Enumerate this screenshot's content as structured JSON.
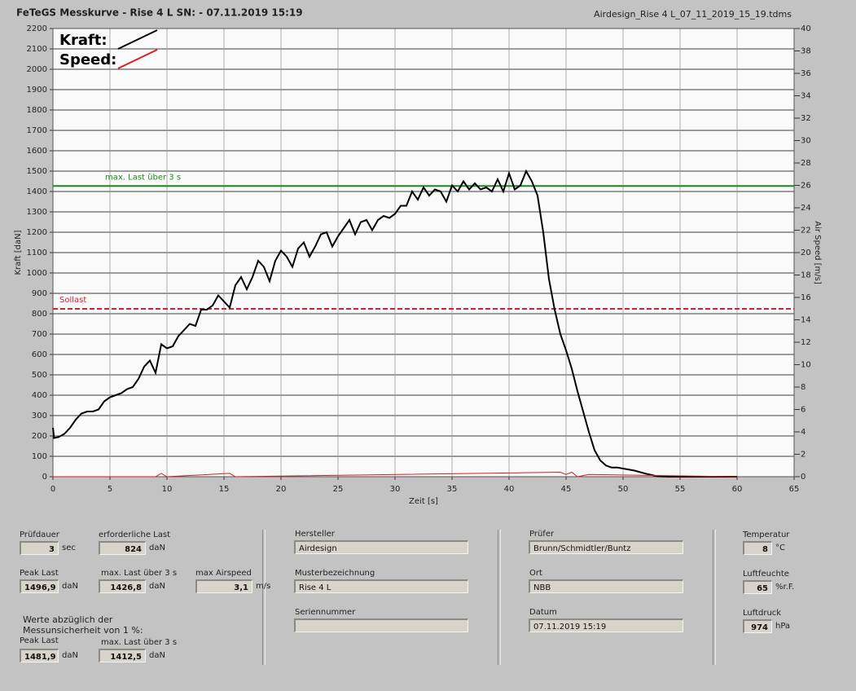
{
  "header": {
    "title": "FeTeGS Messkurve - Rise 4 L  SN:  - 07.11.2019 15:19",
    "file": "Airdesign_Rise 4 L_07_11_2019_15_19.tdms"
  },
  "chart_data": {
    "type": "line",
    "ylabel": "Kraft [daN]",
    "y2label": "Air Speed [m/s]",
    "xlabel": "Zeit [s]",
    "xlim": [
      0,
      65
    ],
    "xticks": [
      0,
      5,
      10,
      15,
      20,
      25,
      30,
      35,
      40,
      45,
      50,
      55,
      60,
      65
    ],
    "ylim": [
      0,
      2200
    ],
    "yticks": [
      0,
      100,
      200,
      300,
      400,
      500,
      600,
      700,
      800,
      900,
      1000,
      1100,
      1200,
      1300,
      1400,
      1500,
      1600,
      1700,
      1800,
      1900,
      2000,
      2100,
      2200
    ],
    "y2lim": [
      0,
      40
    ],
    "y2ticks": [
      0,
      2,
      4,
      6,
      8,
      10,
      12,
      14,
      16,
      18,
      20,
      22,
      24,
      26,
      28,
      30,
      32,
      34,
      36,
      38,
      40
    ],
    "grid": true,
    "series": [
      {
        "name": "Kraft:",
        "color": "#000000",
        "x": [
          0,
          0.1,
          0.5,
          1,
          1.5,
          2,
          2.5,
          3,
          3.5,
          4,
          4.5,
          5,
          5.5,
          6,
          6.5,
          7,
          7.5,
          8,
          8.5,
          9,
          9.5,
          10,
          10.5,
          11,
          11.5,
          12,
          12.5,
          13,
          13.5,
          14,
          14.5,
          15,
          15.5,
          16,
          16.5,
          17,
          17.5,
          18,
          18.5,
          19,
          19.5,
          20,
          20.5,
          21,
          21.5,
          22,
          22.5,
          23,
          23.5,
          24,
          24.5,
          25,
          25.5,
          26,
          26.5,
          27,
          27.5,
          28,
          28.5,
          29,
          29.5,
          30,
          30.5,
          31,
          31.5,
          32,
          32.5,
          33,
          33.5,
          34,
          34.5,
          35,
          35.5,
          36,
          36.5,
          37,
          37.5,
          38,
          38.5,
          39,
          39.5,
          40,
          40.5,
          41,
          41.5,
          42,
          42.5,
          43,
          43.5,
          44,
          44.5,
          45,
          45.5,
          46,
          46.5,
          47,
          47.5,
          48,
          48.5,
          49,
          49.5,
          50,
          51,
          52,
          53,
          54,
          60
        ],
        "values": [
          240,
          190,
          195,
          210,
          240,
          280,
          310,
          320,
          320,
          330,
          370,
          390,
          400,
          410,
          430,
          440,
          480,
          540,
          570,
          510,
          650,
          630,
          640,
          690,
          720,
          750,
          740,
          820,
          820,
          840,
          890,
          860,
          830,
          940,
          980,
          920,
          980,
          1060,
          1030,
          960,
          1060,
          1110,
          1080,
          1030,
          1120,
          1150,
          1080,
          1130,
          1190,
          1200,
          1130,
          1180,
          1220,
          1260,
          1190,
          1250,
          1260,
          1210,
          1260,
          1280,
          1270,
          1290,
          1330,
          1330,
          1400,
          1360,
          1420,
          1380,
          1410,
          1400,
          1350,
          1430,
          1400,
          1450,
          1410,
          1440,
          1410,
          1420,
          1400,
          1460,
          1400,
          1490,
          1410,
          1430,
          1500,
          1450,
          1380,
          1200,
          970,
          820,
          700,
          620,
          530,
          420,
          320,
          220,
          130,
          80,
          55,
          45,
          45,
          40,
          30,
          15,
          2,
          0,
          0
        ]
      },
      {
        "name": "Speed:",
        "color": "#d42020",
        "axis": "y2",
        "x": [
          0,
          9,
          9.5,
          10,
          15.5,
          16,
          44.5,
          45,
          45.5,
          46,
          47,
          60
        ],
        "values": [
          0,
          0,
          0.3,
          0,
          0.3,
          0,
          0.4,
          0.2,
          0.4,
          0,
          0.2,
          0
        ]
      }
    ],
    "lines": [
      {
        "label": "max. Last über  3 s",
        "value": 1426.8,
        "color": "#1a8a1a"
      },
      {
        "label": "Sollast",
        "value": 824,
        "color": "#d0203a",
        "dashed": true
      }
    ]
  },
  "fields": [
    {
      "label": "Prüfdauer",
      "value": "3",
      "unit": "sec"
    },
    {
      "label": "erforderliche Last",
      "value": "824",
      "unit": "daN"
    },
    {
      "label": "Peak Last",
      "value": "1496,9",
      "unit": "daN"
    },
    {
      "label": "max. Last über  3 s",
      "value": "1426,8",
      "unit": "daN"
    },
    {
      "label": "max Airspeed",
      "value": "3,1",
      "unit": "m/s"
    },
    {
      "label": "Peak Last",
      "value": "1481,9",
      "unit": "daN"
    },
    {
      "label": "max. Last über  3 s",
      "value": "1412,5",
      "unit": "daN"
    },
    {
      "label": "Hersteller",
      "value": "Airdesign"
    },
    {
      "label": "Musterbezeichnung",
      "value": "Rise 4 L"
    },
    {
      "label": "Seriennummer"
    },
    {
      "label": "Prüfer",
      "value": "Brunn/Schmidtler/Buntz"
    },
    {
      "label": "Ort",
      "value": "NBB"
    },
    {
      "label": "Datum",
      "value": "07.11.2019 15:19"
    },
    {
      "label": "Temperatur",
      "value": "8",
      "unit": "°C"
    },
    {
      "label": "Luftfeuchte",
      "value": "65",
      "unit": "%r.F."
    },
    {
      "label": "Luftdruck",
      "value": "974",
      "unit": "hPa"
    }
  ],
  "note": [
    "Werte abzüglich der",
    "Messunsicherheit von 1  %:"
  ]
}
